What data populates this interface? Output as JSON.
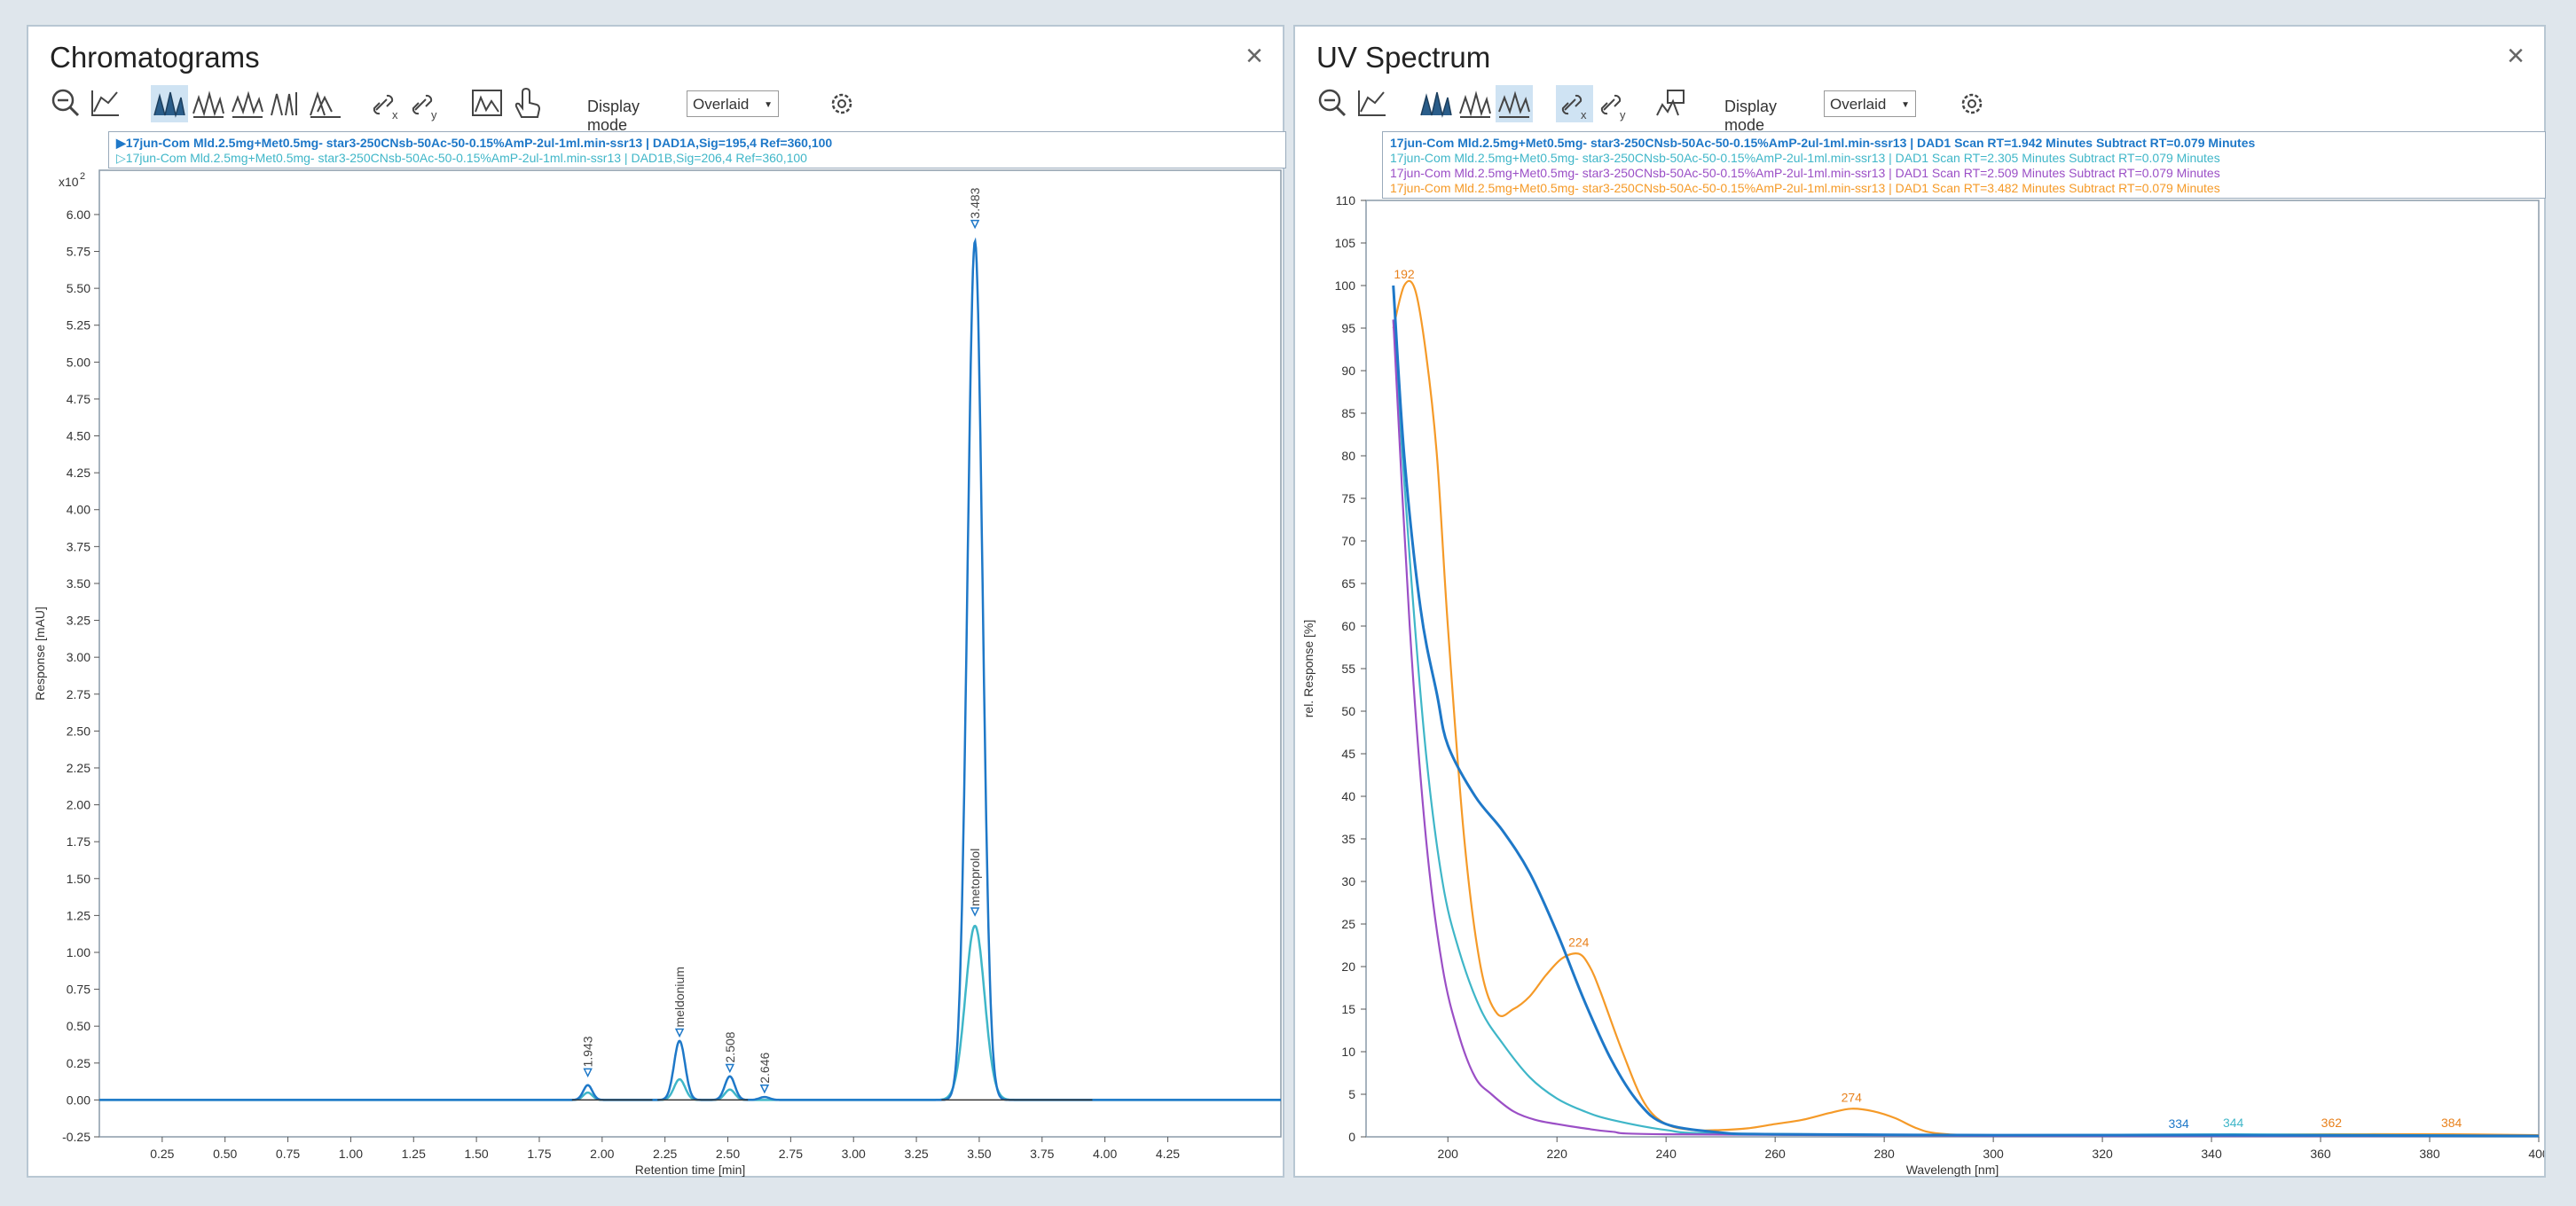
{
  "colors": {
    "blue": "#1e78c8",
    "cyan": "#3fb6c8",
    "purple": "#9b4fc6",
    "orange": "#f59a28",
    "dark": "#222222",
    "orange_label": "#e8811c"
  },
  "left_panel": {
    "title": "Chromatograms",
    "display_mode_label": "Display mode",
    "display_mode_value": "Overlaid",
    "legend": [
      {
        "marker": "▶",
        "text": "17jun-Com Mld.2.5mg+Met0.5mg- star3-250CNsb-50Ac-50-0.15%AmP-2ul-1ml.min-ssr13 | DAD1A,Sig=195,4 Ref=360,100",
        "color": "#1e78c8"
      },
      {
        "marker": "▷",
        "text": "17jun-Com Mld.2.5mg+Met0.5mg- star3-250CNsb-50Ac-50-0.15%AmP-2ul-1ml.min-ssr13 | DAD1B,Sig=206,4 Ref=360,100",
        "color": "#3fb6c8"
      }
    ]
  },
  "right_panel": {
    "title": "UV Spectrum",
    "display_mode_label": "Display mode",
    "display_mode_value": "Overlaid",
    "legend": [
      {
        "text": "17jun-Com Mld.2.5mg+Met0.5mg- star3-250CNsb-50Ac-50-0.15%AmP-2ul-1ml.min-ssr13 | DAD1 Scan RT=1.942 Minutes Subtract RT=0.079 Minutes",
        "color": "#1e78c8"
      },
      {
        "text": "17jun-Com Mld.2.5mg+Met0.5mg- star3-250CNsb-50Ac-50-0.15%AmP-2ul-1ml.min-ssr13 | DAD1 Scan RT=2.305 Minutes Subtract RT=0.079 Minutes",
        "color": "#3fb6c8"
      },
      {
        "text": "17jun-Com Mld.2.5mg+Met0.5mg- star3-250CNsb-50Ac-50-0.15%AmP-2ul-1ml.min-ssr13 | DAD1 Scan RT=2.509 Minutes Subtract RT=0.079 Minutes",
        "color": "#9b4fc6"
      },
      {
        "text": "17jun-Com Mld.2.5mg+Met0.5mg- star3-250CNsb-50Ac-50-0.15%AmP-2ul-1ml.min-ssr13 | DAD1 Scan RT=3.482 Minutes Subtract RT=0.079 Minutes",
        "color": "#f59a28"
      }
    ]
  },
  "chart_data": [
    {
      "type": "line",
      "title": "Chromatograms",
      "xlabel": "Retention time [min]",
      "ylabel": "Response [mAU]",
      "y_multiplier": "x10",
      "y_multiplier_exp": "2",
      "xlim": [
        0.0,
        4.7
      ],
      "ylim": [
        -0.25,
        6.3
      ],
      "xticks": [
        "0.25",
        "0.50",
        "0.75",
        "1.00",
        "1.25",
        "1.50",
        "1.75",
        "2.00",
        "2.25",
        "2.50",
        "2.75",
        "3.00",
        "3.25",
        "3.50",
        "3.75",
        "4.00",
        "4.25"
      ],
      "yticks": [
        "-0.25",
        "0.00",
        "0.25",
        "0.50",
        "0.75",
        "1.00",
        "1.25",
        "1.50",
        "1.75",
        "2.00",
        "2.25",
        "2.50",
        "2.75",
        "3.00",
        "3.25",
        "3.50",
        "3.75",
        "4.00",
        "4.25",
        "4.50",
        "4.75",
        "5.00",
        "5.25",
        "5.50",
        "5.75",
        "6.00"
      ],
      "series": [
        {
          "name": "DAD1A,Sig=195,4 Ref=360,100",
          "color": "#1e78c8",
          "peaks": [
            {
              "rt": 1.943,
              "height": 0.1,
              "sigma": 0.018
            },
            {
              "rt": 2.308,
              "height": 0.4,
              "sigma": 0.022
            },
            {
              "rt": 2.508,
              "height": 0.16,
              "sigma": 0.02
            },
            {
              "rt": 2.646,
              "height": 0.02,
              "sigma": 0.02
            },
            {
              "rt": 3.483,
              "height": 5.82,
              "sigma": 0.03
            }
          ]
        },
        {
          "name": "DAD1B,Sig=206,4 Ref=360,100",
          "color": "#3fb6c8",
          "peaks": [
            {
              "rt": 1.943,
              "height": 0.05,
              "sigma": 0.018
            },
            {
              "rt": 2.308,
              "height": 0.14,
              "sigma": 0.022
            },
            {
              "rt": 2.508,
              "height": 0.07,
              "sigma": 0.02
            },
            {
              "rt": 3.483,
              "height": 1.18,
              "sigma": 0.038
            }
          ]
        }
      ],
      "annotations": [
        {
          "text": "1.943",
          "x": 1.943,
          "y": 0.15
        },
        {
          "text": "meldonium",
          "x": 2.308,
          "y": 0.42
        },
        {
          "text": "2.508",
          "x": 2.508,
          "y": 0.18
        },
        {
          "text": "2.646",
          "x": 2.646,
          "y": 0.04
        },
        {
          "text": "3.483",
          "x": 3.483,
          "y": 5.9
        },
        {
          "text": "metoprolol",
          "x": 3.483,
          "y": 1.24
        }
      ]
    },
    {
      "type": "line",
      "title": "UV Spectrum",
      "xlabel": "Wavelength [nm]",
      "ylabel": "rel. Response [%]",
      "xlim": [
        185,
        400
      ],
      "ylim": [
        0,
        110
      ],
      "xticks": [
        "200",
        "220",
        "240",
        "260",
        "280",
        "300",
        "320",
        "340",
        "360",
        "380",
        "400"
      ],
      "yticks": [
        "0",
        "5",
        "10",
        "15",
        "20",
        "25",
        "30",
        "35",
        "40",
        "45",
        "50",
        "55",
        "60",
        "65",
        "70",
        "75",
        "80",
        "85",
        "90",
        "95",
        "100",
        "105",
        "110"
      ],
      "series": [
        {
          "name": "RT=1.942",
          "color": "#1e78c8",
          "x": [
            190,
            192,
            195,
            198,
            200,
            205,
            210,
            215,
            220,
            225,
            230,
            235,
            240,
            250,
            260,
            300,
            340,
            400
          ],
          "y": [
            100,
            80,
            62,
            52,
            46,
            40,
            36,
            31,
            24,
            16,
            9,
            4,
            1.5,
            0.5,
            0.3,
            0.2,
            0.2,
            0.1
          ]
        },
        {
          "name": "RT=2.305",
          "color": "#3fb6c8",
          "x": [
            190,
            193,
            196,
            199,
            202,
            206,
            210,
            215,
            220,
            225,
            230,
            240,
            250,
            300,
            344,
            400
          ],
          "y": [
            96,
            68,
            45,
            30,
            22,
            15,
            11,
            7,
            4.5,
            3,
            2,
            0.8,
            0.4,
            0.2,
            0.3,
            0.1
          ]
        },
        {
          "name": "RT=2.509",
          "color": "#9b4fc6",
          "x": [
            190,
            193,
            196,
            199,
            202,
            205,
            208,
            212,
            216,
            220,
            225,
            230,
            240,
            300,
            400
          ],
          "y": [
            96,
            60,
            35,
            20,
            12,
            7,
            5,
            3,
            2,
            1.5,
            1,
            0.6,
            0.3,
            0.1,
            0.1
          ]
        },
        {
          "name": "RT=3.482",
          "color": "#f59a28",
          "x": [
            190,
            192,
            194,
            196,
            198,
            200,
            203,
            206,
            209,
            212,
            215,
            218,
            221,
            224,
            226,
            228,
            232,
            236,
            240,
            245,
            250,
            255,
            260,
            265,
            270,
            274,
            278,
            282,
            286,
            290,
            300,
            340,
            362,
            384,
            400
          ],
          "y": [
            95,
            100,
            99.5,
            92,
            80,
            60,
            35,
            20,
            14.5,
            15,
            16.5,
            19,
            21,
            21.5,
            20,
            17,
            10,
            4,
            1.5,
            0.8,
            0.8,
            1.0,
            1.5,
            2,
            2.8,
            3.3,
            3,
            2.2,
            1,
            0.4,
            0.2,
            0.2,
            0.3,
            0.3,
            0.2
          ]
        }
      ],
      "annotations": [
        {
          "text": "192",
          "x": 192,
          "y": 100,
          "color": "#e8811c"
        },
        {
          "text": "224",
          "x": 224,
          "y": 21.5,
          "color": "#e8811c"
        },
        {
          "text": "274",
          "x": 274,
          "y": 3.3,
          "color": "#e8811c"
        },
        {
          "text": "334",
          "x": 334,
          "y": 0.2,
          "color": "#1e78c8"
        },
        {
          "text": "344",
          "x": 344,
          "y": 0.3,
          "color": "#3fb6c8"
        },
        {
          "text": "362",
          "x": 362,
          "y": 0.3,
          "color": "#e8811c"
        },
        {
          "text": "384",
          "x": 384,
          "y": 0.3,
          "color": "#e8811c"
        }
      ]
    }
  ]
}
